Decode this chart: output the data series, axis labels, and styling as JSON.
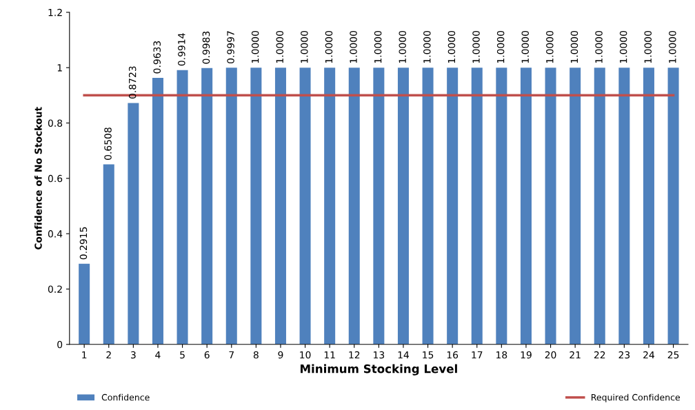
{
  "chart_data": {
    "type": "bar",
    "xlabel": "Minimum Stocking Level",
    "ylabel": "Confidence of No Stockout",
    "categories": [
      "1",
      "2",
      "3",
      "4",
      "5",
      "6",
      "7",
      "8",
      "9",
      "10",
      "11",
      "12",
      "13",
      "14",
      "15",
      "16",
      "17",
      "18",
      "19",
      "20",
      "21",
      "22",
      "23",
      "24",
      "25"
    ],
    "series": [
      {
        "name": "Confidence",
        "color": "#4f81bd",
        "values": [
          0.2915,
          0.6508,
          0.8723,
          0.9633,
          0.9914,
          0.9983,
          0.9997,
          1,
          1,
          1,
          1,
          1,
          1,
          1,
          1,
          1,
          1,
          1,
          1,
          1,
          1,
          1,
          1,
          1,
          1
        ],
        "value_labels": [
          "0.2915",
          "0.6508",
          "0.8723",
          "0.9633",
          "0.9914",
          "0.9983",
          "0.9997",
          "1.0000",
          "1.0000",
          "1.0000",
          "1.0000",
          "1.0000",
          "1.0000",
          "1.0000",
          "1.0000",
          "1.0000",
          "1.0000",
          "1.0000",
          "1.0000",
          "1.0000",
          "1.0000",
          "1.0000",
          "1.0000",
          "1.0000",
          "1.0000"
        ]
      },
      {
        "name": "Required Confidence",
        "type": "line",
        "color": "#c0504d",
        "values": [
          0.9,
          0.9,
          0.9,
          0.9,
          0.9,
          0.9,
          0.9,
          0.9,
          0.9,
          0.9,
          0.9,
          0.9,
          0.9,
          0.9,
          0.9,
          0.9,
          0.9,
          0.9,
          0.9,
          0.9,
          0.9,
          0.9,
          0.9,
          0.9,
          0.9
        ]
      }
    ],
    "ylim": [
      0,
      1.2
    ],
    "yticks": [
      0,
      0.2,
      0.4,
      0.6,
      0.8,
      1,
      1.2
    ],
    "grid": false,
    "legend": "bottom",
    "line_style": "solid",
    "marker": "none"
  }
}
